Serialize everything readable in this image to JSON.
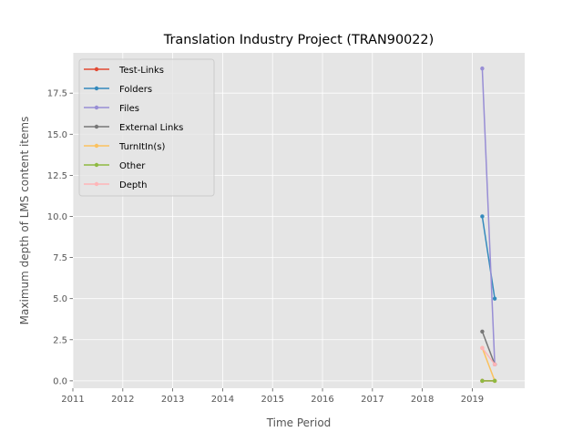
{
  "chart_data": {
    "type": "line",
    "title": "Translation Industry Project (TRAN90022)",
    "xlabel": "Time Period",
    "ylabel": "Maximum depth of LMS content items",
    "xlim": [
      2011.0,
      2020.05
    ],
    "ylim": [
      -0.45,
      19.95
    ],
    "x_ticks": [
      2011,
      2012,
      2013,
      2014,
      2015,
      2016,
      2017,
      2018,
      2019
    ],
    "x_tick_labels": [
      "2011",
      "2012",
      "2013",
      "2014",
      "2015",
      "2016",
      "2017",
      "2018",
      "2019"
    ],
    "y_ticks": [
      0.0,
      2.5,
      5.0,
      7.5,
      10.0,
      12.5,
      15.0,
      17.5
    ],
    "y_tick_labels": [
      "0.0",
      "2.5",
      "5.0",
      "7.5",
      "10.0",
      "12.5",
      "15.0",
      "17.5"
    ],
    "grid": true,
    "legend_position": "upper-left",
    "series": [
      {
        "name": "Test-Links",
        "color": "#E24A33",
        "x": [
          2019.2,
          2019.45
        ],
        "y": [
          0,
          0
        ]
      },
      {
        "name": "Folders",
        "color": "#348ABD",
        "x": [
          2019.2,
          2019.45
        ],
        "y": [
          10,
          5
        ]
      },
      {
        "name": "Files",
        "color": "#988ED5",
        "x": [
          2019.2,
          2019.45
        ],
        "y": [
          19,
          1
        ]
      },
      {
        "name": "External Links",
        "color": "#777777",
        "x": [
          2019.2,
          2019.45
        ],
        "y": [
          3,
          1
        ]
      },
      {
        "name": "TurnItIn(s)",
        "color": "#FBC15E",
        "x": [
          2019.2,
          2019.45
        ],
        "y": [
          2,
          0
        ]
      },
      {
        "name": "Other",
        "color": "#8EBA42",
        "x": [
          2019.2,
          2019.45
        ],
        "y": [
          0,
          0
        ]
      },
      {
        "name": "Depth",
        "color": "#FFB5B8",
        "x": [
          2019.2,
          2019.45
        ],
        "y": [
          2,
          1
        ]
      }
    ]
  }
}
